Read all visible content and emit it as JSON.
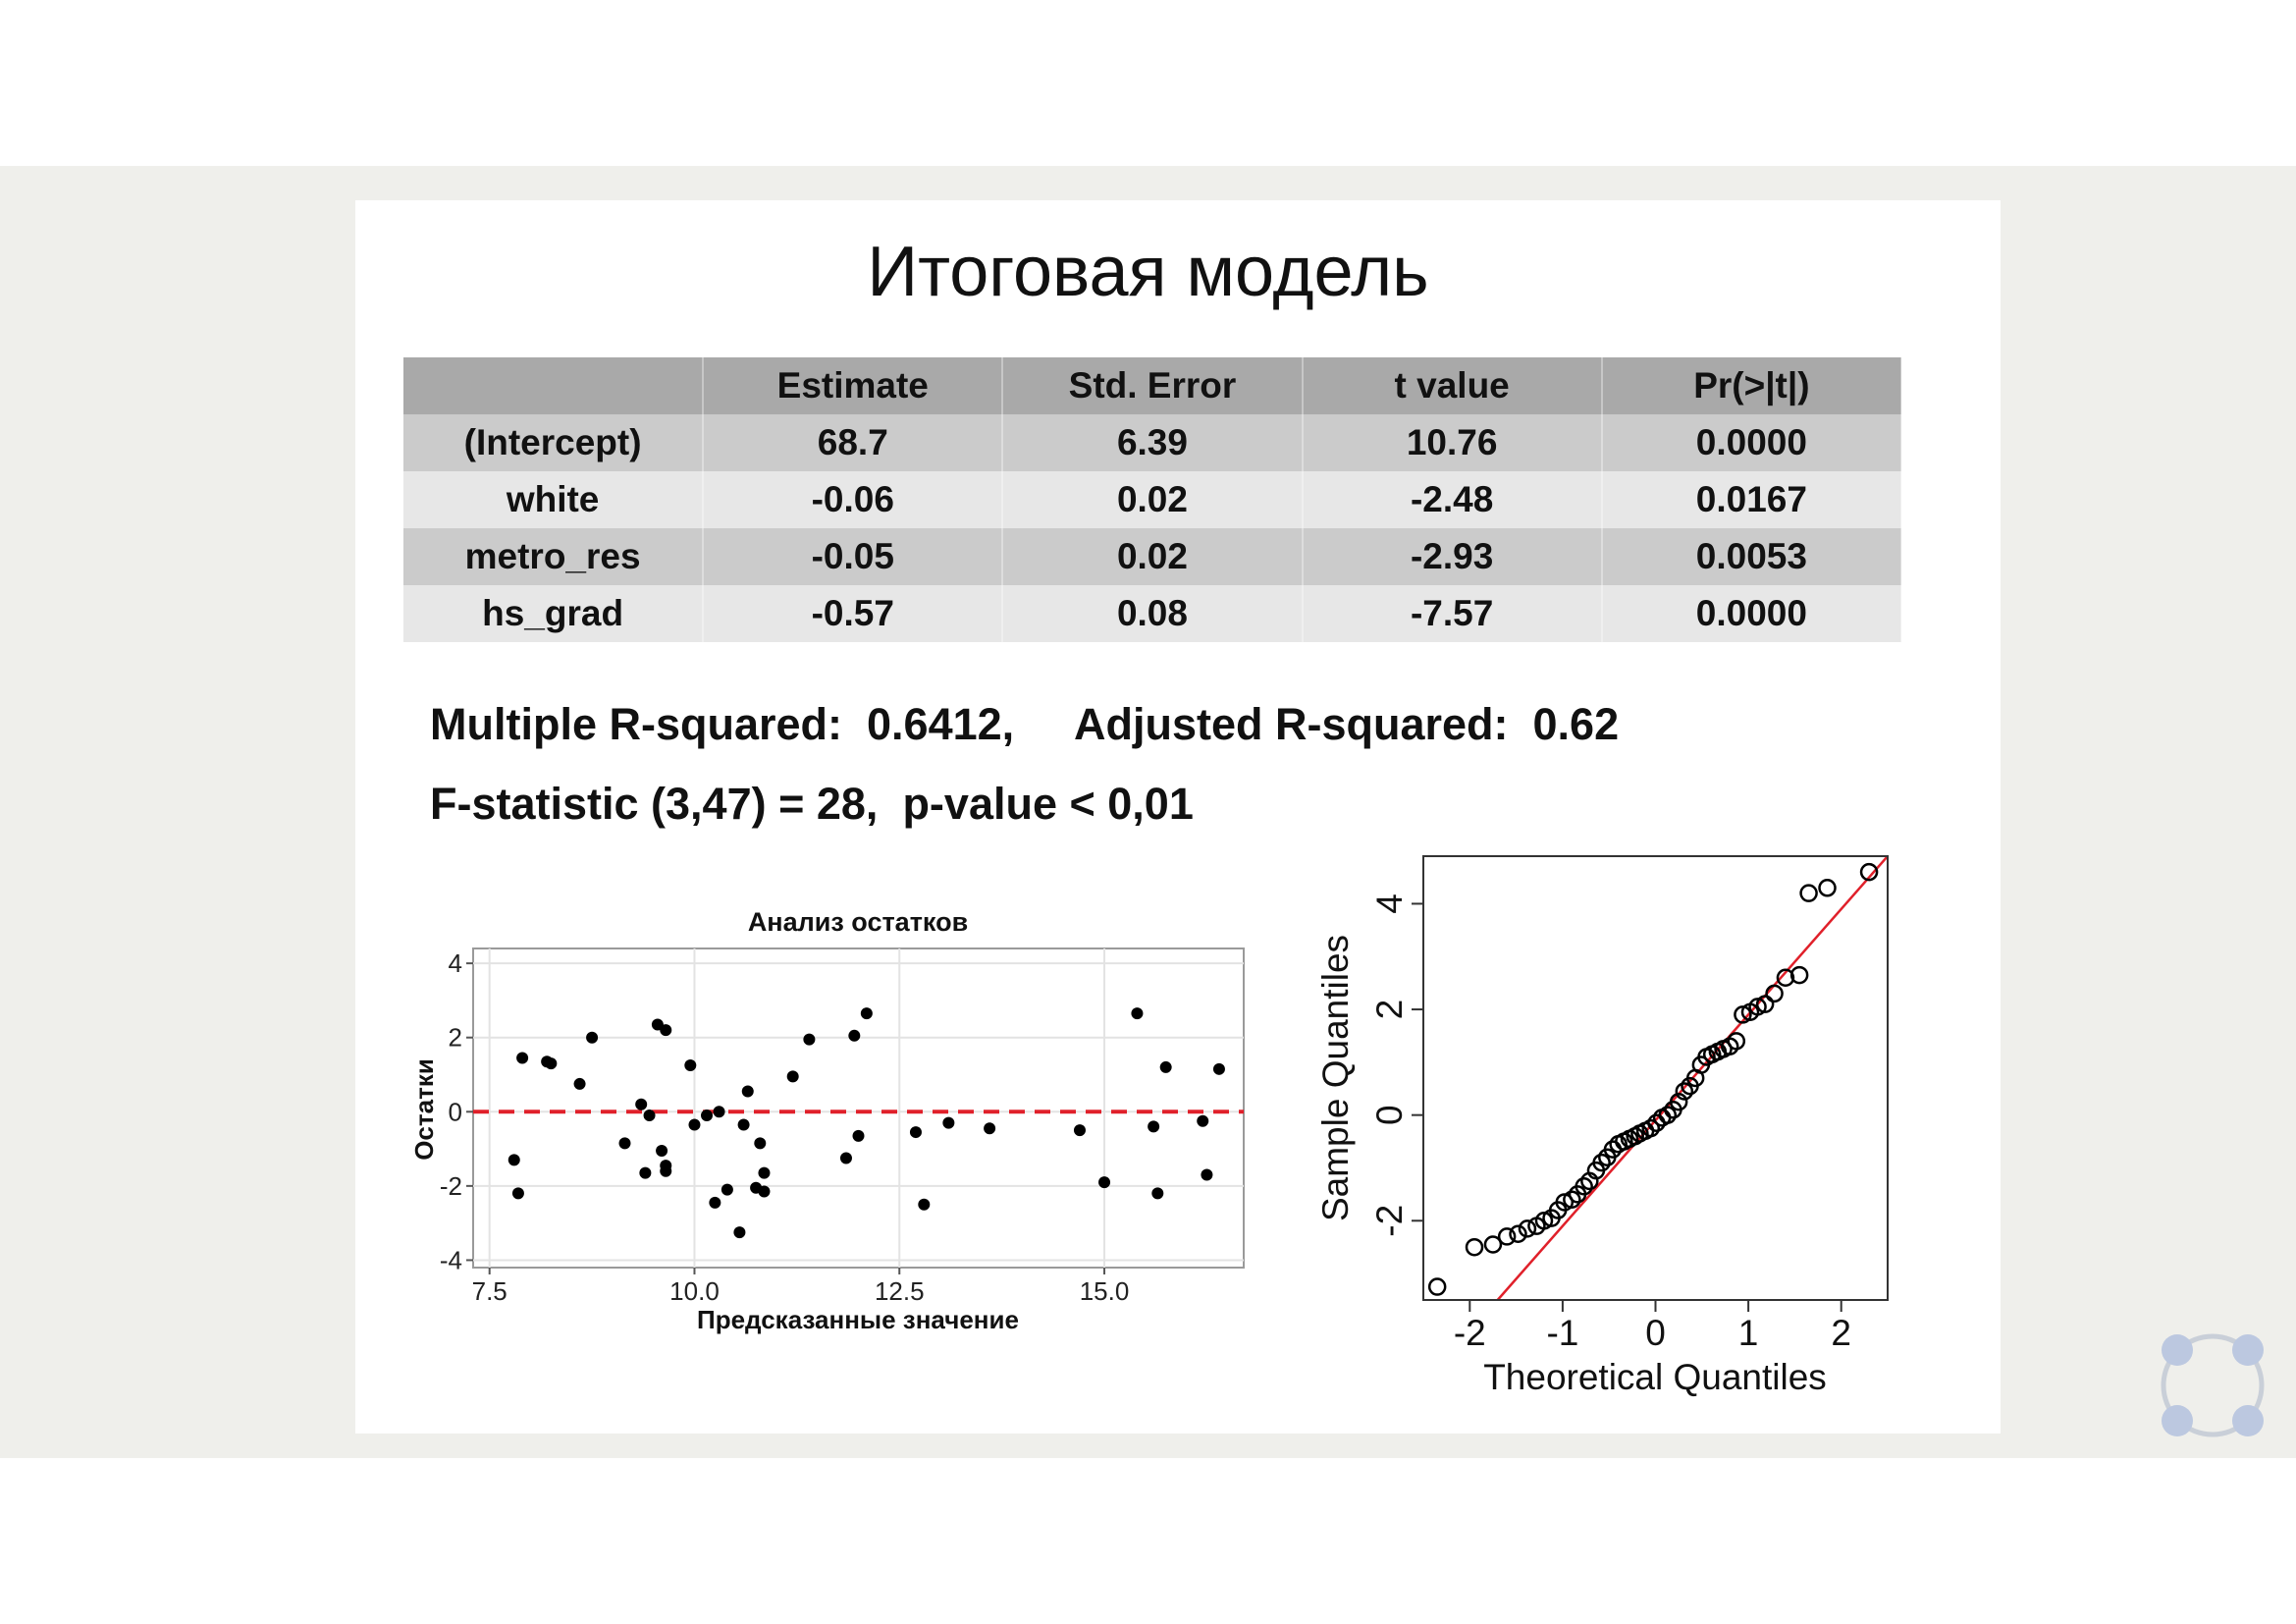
{
  "slide": {
    "title": "Итоговая модель"
  },
  "table": {
    "headers": [
      "",
      "Estimate",
      "Std. Error",
      "t value",
      "Pr(>|t|)"
    ],
    "rows": [
      [
        "(Intercept)",
        "68.7",
        "6.39",
        "10.76",
        "0.0000"
      ],
      [
        "white",
        "-0.06",
        "0.02",
        "-2.48",
        "0.0167"
      ],
      [
        "metro_res",
        "-0.05",
        "0.02",
        "-2.93",
        "0.0053"
      ],
      [
        "hs_grad",
        "-0.57",
        "0.08",
        "-7.57",
        "0.0000"
      ]
    ]
  },
  "stats": {
    "r_squared_line": "Multiple R-squared:  0.6412,     Adjusted R-squared:  0.62",
    "f_line": "F-statistic (3,47) = 28,  p-value < 0,01"
  },
  "chart_data": [
    {
      "type": "scatter",
      "title": "Анализ остатков",
      "xlabel": "Предсказанные значение",
      "ylabel": "Остатки",
      "xlim": [
        7.3,
        16.7
      ],
      "ylim": [
        -4.2,
        4.4
      ],
      "xticks": [
        "7.5",
        "10.0",
        "12.5",
        "15.0"
      ],
      "yticks": [
        "4",
        "2",
        "0",
        "-2",
        "-4"
      ],
      "grid": true,
      "reference_line": {
        "y": 0,
        "color": "#e0202a",
        "style": "dashed"
      },
      "points": [
        [
          7.8,
          -1.3
        ],
        [
          7.85,
          -2.2
        ],
        [
          7.9,
          1.45
        ],
        [
          8.2,
          1.35
        ],
        [
          8.25,
          1.3
        ],
        [
          8.6,
          0.75
        ],
        [
          8.75,
          2.0
        ],
        [
          9.15,
          -0.85
        ],
        [
          9.35,
          0.2
        ],
        [
          9.4,
          -1.65
        ],
        [
          9.45,
          -0.1
        ],
        [
          9.55,
          2.35
        ],
        [
          9.6,
          -1.05
        ],
        [
          9.65,
          2.2
        ],
        [
          9.65,
          -1.45
        ],
        [
          9.65,
          -1.6
        ],
        [
          9.95,
          1.25
        ],
        [
          10.0,
          -0.35
        ],
        [
          10.15,
          -0.1
        ],
        [
          10.25,
          -2.45
        ],
        [
          10.3,
          0.0
        ],
        [
          10.4,
          -2.1
        ],
        [
          10.55,
          -3.25
        ],
        [
          10.6,
          -0.35
        ],
        [
          10.65,
          0.55
        ],
        [
          10.75,
          -2.05
        ],
        [
          10.8,
          -0.85
        ],
        [
          10.85,
          -1.65
        ],
        [
          10.85,
          -2.15
        ],
        [
          11.2,
          0.95
        ],
        [
          11.4,
          1.95
        ],
        [
          11.85,
          -1.25
        ],
        [
          11.95,
          2.05
        ],
        [
          12.0,
          -0.65
        ],
        [
          12.1,
          2.65
        ],
        [
          12.7,
          -0.55
        ],
        [
          12.8,
          -2.5
        ],
        [
          13.1,
          -0.3
        ],
        [
          13.6,
          -0.45
        ],
        [
          14.7,
          -0.5
        ],
        [
          15.0,
          -1.9
        ],
        [
          15.4,
          2.65
        ],
        [
          15.6,
          -0.4
        ],
        [
          15.65,
          -2.2
        ],
        [
          15.75,
          1.2
        ],
        [
          16.2,
          -0.25
        ],
        [
          16.25,
          -1.7
        ],
        [
          16.4,
          1.15
        ]
      ]
    },
    {
      "type": "scatter",
      "title": "",
      "xlabel": "Theoretical Quantiles",
      "ylabel": "Sample Quantiles",
      "xlim": [
        -2.5,
        2.5
      ],
      "ylim": [
        -3.5,
        4.9
      ],
      "xticks": [
        "-2",
        "-1",
        "0",
        "1",
        "2"
      ],
      "yticks": [
        "4",
        "2",
        "0",
        "-2"
      ],
      "grid": false,
      "reference_line": {
        "from": [
          -1.7,
          -3.5
        ],
        "to": [
          2.5,
          4.9
        ],
        "color": "#e0202a",
        "style": "solid"
      },
      "marker": "open-circle",
      "points": [
        [
          -2.35,
          -3.25
        ],
        [
          -1.95,
          -2.5
        ],
        [
          -1.75,
          -2.45
        ],
        [
          -1.6,
          -2.3
        ],
        [
          -1.48,
          -2.25
        ],
        [
          -1.38,
          -2.15
        ],
        [
          -1.28,
          -2.1
        ],
        [
          -1.2,
          -2.0
        ],
        [
          -1.12,
          -1.95
        ],
        [
          -1.05,
          -1.8
        ],
        [
          -0.98,
          -1.65
        ],
        [
          -0.9,
          -1.6
        ],
        [
          -0.84,
          -1.5
        ],
        [
          -0.77,
          -1.35
        ],
        [
          -0.71,
          -1.25
        ],
        [
          -0.64,
          -1.05
        ],
        [
          -0.58,
          -0.9
        ],
        [
          -0.52,
          -0.8
        ],
        [
          -0.46,
          -0.65
        ],
        [
          -0.4,
          -0.55
        ],
        [
          -0.34,
          -0.5
        ],
        [
          -0.28,
          -0.45
        ],
        [
          -0.22,
          -0.4
        ],
        [
          -0.17,
          -0.35
        ],
        [
          -0.11,
          -0.3
        ],
        [
          -0.05,
          -0.25
        ],
        [
          0.01,
          -0.15
        ],
        [
          0.07,
          -0.05
        ],
        [
          0.13,
          0.0
        ],
        [
          0.19,
          0.1
        ],
        [
          0.25,
          0.25
        ],
        [
          0.31,
          0.45
        ],
        [
          0.37,
          0.55
        ],
        [
          0.43,
          0.7
        ],
        [
          0.49,
          0.95
        ],
        [
          0.55,
          1.1
        ],
        [
          0.61,
          1.15
        ],
        [
          0.67,
          1.2
        ],
        [
          0.73,
          1.25
        ],
        [
          0.8,
          1.3
        ],
        [
          0.87,
          1.4
        ],
        [
          0.94,
          1.9
        ],
        [
          1.02,
          1.95
        ],
        [
          1.1,
          2.05
        ],
        [
          1.18,
          2.1
        ],
        [
          1.28,
          2.3
        ],
        [
          1.4,
          2.6
        ],
        [
          1.55,
          2.65
        ],
        [
          1.65,
          4.2
        ],
        [
          1.85,
          4.3
        ],
        [
          2.3,
          4.6
        ]
      ]
    }
  ]
}
